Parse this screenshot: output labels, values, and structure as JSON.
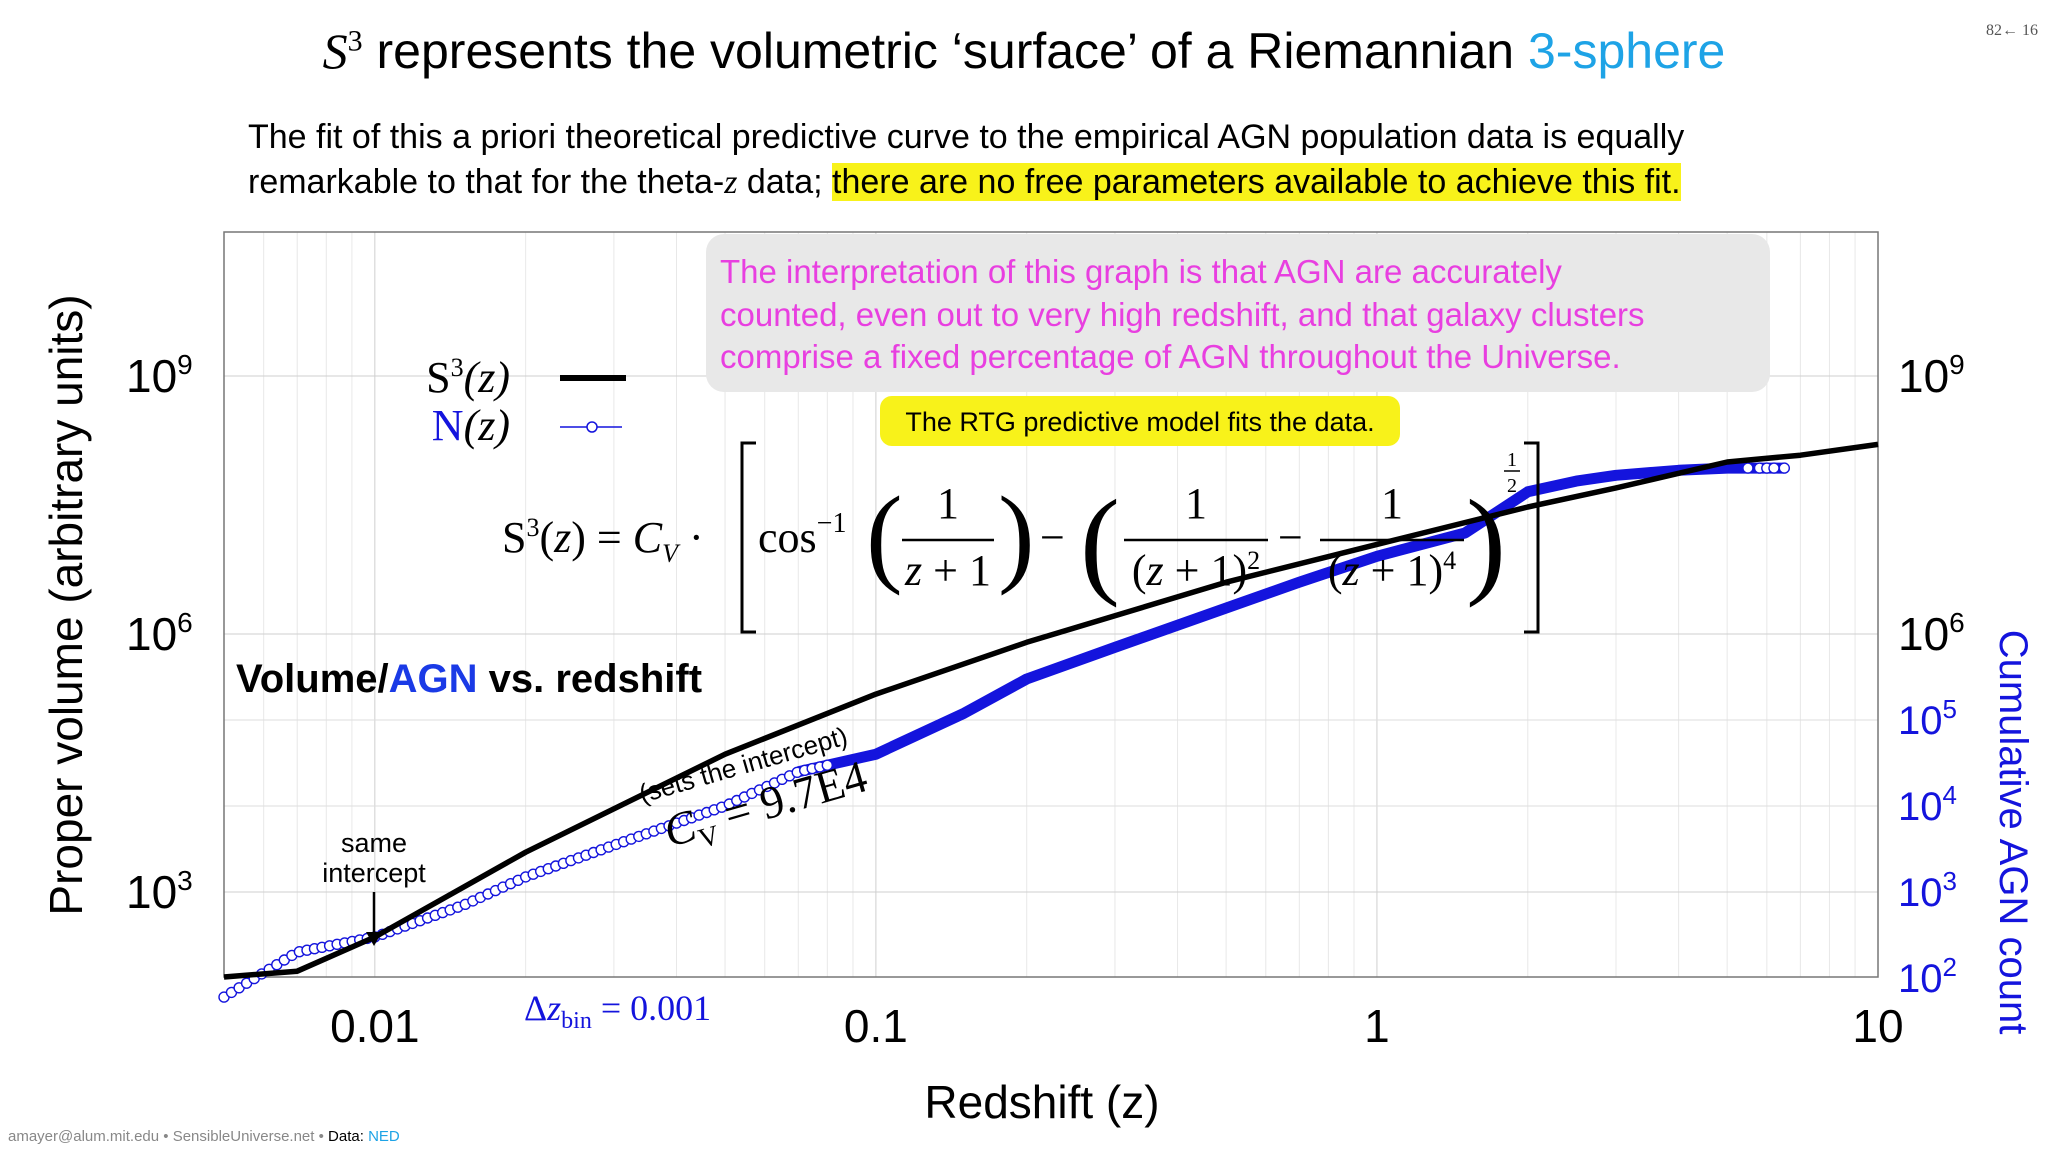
{
  "slide": {
    "title_s3": "S",
    "title_s3_sup": "3",
    "title_main": " represents the volumetric ‘surface’ of a Riemannian ",
    "title_accent": "3-sphere",
    "number": "82← 16",
    "subtitle_a": "The fit of this a priori theoretical predictive curve to the empirical AGN population data is equally remarkable to that for the theta-",
    "subtitle_z": "z",
    "subtitle_b": " data; ",
    "subtitle_highlight": "there are no free parameters available to achieve this fit.",
    "footer_contact": "amayer@alum.mit.edu • SensibleUniverse.net • ",
    "footer_data_label": "Data: ",
    "footer_data_link": "NED",
    "accent_color": "#1ea3e6",
    "highlight_color": "#f8f21a"
  },
  "chart_data": {
    "type": "line",
    "title": "Volume/AGN vs. redshift",
    "title_parts": [
      "Volume/",
      "AGN",
      " vs. redshift"
    ],
    "xlabel": "Redshift (z)",
    "ylabel_left": "Proper volume (arbitrary units)",
    "ylabel_right": "Cumulative AGN count",
    "x_scale": "log",
    "xlim": [
      0.005,
      10
    ],
    "x_ticks": [
      0.01,
      0.1,
      1,
      10
    ],
    "x_tick_labels": [
      "0.01",
      "0.1",
      "1",
      "10"
    ],
    "y_left_scale": "log",
    "y_left_ticks": [
      1000,
      1000000,
      1000000000
    ],
    "y_left_tick_labels": [
      {
        "base": "10",
        "exp": "3"
      },
      {
        "base": "10",
        "exp": "6"
      },
      {
        "base": "10",
        "exp": "9"
      }
    ],
    "y_right_ticks_black": [
      {
        "base": "10",
        "exp": "6"
      },
      {
        "base": "10",
        "exp": "9"
      }
    ],
    "y_right_ticks_blue": [
      {
        "value": 100,
        "base": "10",
        "exp": "2"
      },
      {
        "value": 1000,
        "base": "10",
        "exp": "3"
      },
      {
        "value": 10000,
        "base": "10",
        "exp": "4"
      },
      {
        "value": 100000,
        "base": "10",
        "exp": "5"
      }
    ],
    "grid": true,
    "series": [
      {
        "name": "S³(z)",
        "color": "#000000",
        "style": "line",
        "x": [
          0.005,
          0.007,
          0.01,
          0.02,
          0.05,
          0.1,
          0.2,
          0.5,
          1,
          2,
          3,
          5,
          7,
          10
        ],
        "y": [
          38,
          120,
          300,
          2900,
          40000,
          200000,
          800000,
          4000000,
          11000000,
          30000000,
          50000000,
          100000000,
          120000000,
          160000000
        ]
      },
      {
        "name": "N(z)",
        "color": "#1414dd",
        "style": "line-circles",
        "x": [
          0.005,
          0.007,
          0.01,
          0.015,
          0.02,
          0.03,
          0.05,
          0.07,
          0.1,
          0.15,
          0.2,
          0.3,
          0.5,
          0.7,
          1,
          1.5,
          2,
          2.5,
          3,
          4,
          5,
          6.5
        ],
        "y": [
          60,
          200,
          300,
          700,
          1500,
          3500,
          10000,
          25000,
          40000,
          120000,
          300000,
          700000,
          2000000,
          4000000,
          8000000,
          15000000,
          45000000,
          60000000,
          70000000,
          80000000,
          85000000,
          85000000
        ]
      }
    ],
    "legend": [
      {
        "label": "S",
        "sup": "3",
        "paren": "(z)",
        "color": "#000000"
      },
      {
        "label": "N",
        "sup": "",
        "paren": "(z)",
        "color": "#1414dd"
      }
    ],
    "legend_position": "upper-left",
    "annotations": {
      "interpretation": "The interpretation of this graph is that AGN are accurately counted, even out to very high redshift, and that galaxy clusters comprise a fixed percentage of AGN throughout the Universe.",
      "rtg_note": "The RTG predictive model fits the data.",
      "intercept_note_1": "same",
      "intercept_note_2": "intercept",
      "cv_note": "(sets the intercept)",
      "cv_value": "C_V = 9.7E4",
      "dz_bin": "Δz_bin = 0.001",
      "formula": "S³(z) = C_V · [ cos⁻¹( 1/(z+1) ) − ( 1/(z+1)² − 1/(z+1)⁴ )^½ ]"
    },
    "colors": {
      "interpretation_text": "#e83fe0",
      "interpretation_bg": "#e8e8e8",
      "rtg_bg": "#f8f21a",
      "blue": "#1414dd",
      "blue_title": "#1a3ae6"
    }
  }
}
